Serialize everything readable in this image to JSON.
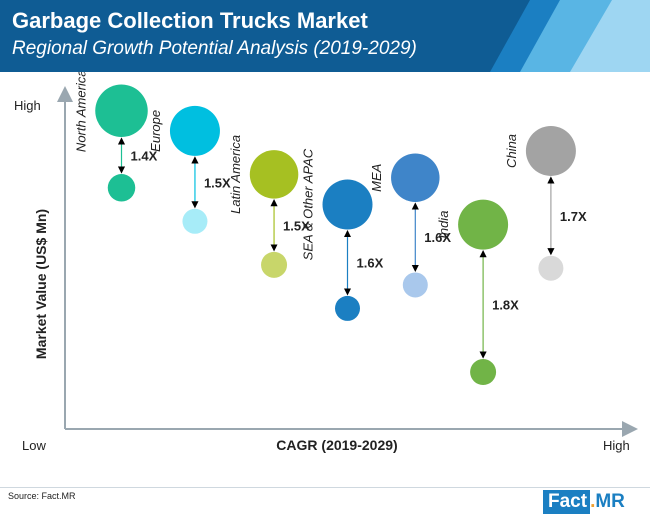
{
  "header": {
    "title": "Garbage Collection Trucks Market",
    "subtitle": "Regional Growth Potential Analysis (2019-2029)",
    "colors": {
      "dark": "#0f5c94",
      "mid": "#1b7fc2",
      "light": "#59b5e4",
      "pale": "#9ed6f2"
    }
  },
  "chart_data": {
    "type": "bubble",
    "xlabel": "CAGR (2019-2029)",
    "ylabel": "Market Value (US$ Mn)",
    "x_low_label": "Low",
    "x_high_label": "High",
    "y_high_label": "High",
    "x_range": [
      0,
      10
    ],
    "y_range": [
      0,
      10
    ],
    "regions": [
      {
        "name": "North America",
        "x": 1.0,
        "y_top": 9.5,
        "y_bottom": 7.2,
        "r_top": 1.05,
        "r_bottom": 0.55,
        "multiplier": "1.4X",
        "color_top": "#1dbf94",
        "color_bottom": "#1dbf94"
      },
      {
        "name": "Europe",
        "x": 2.3,
        "y_top": 8.9,
        "y_bottom": 6.2,
        "r_top": 1.0,
        "r_bottom": 0.5,
        "multiplier": "1.5X",
        "color_top": "#00bfe0",
        "color_bottom": "#a7ecf8"
      },
      {
        "name": "Latin America",
        "x": 3.7,
        "y_top": 7.6,
        "y_bottom": 4.9,
        "r_top": 0.97,
        "r_bottom": 0.52,
        "multiplier": "1.5X",
        "color_top": "#a6c022",
        "color_bottom": "#c8d66a"
      },
      {
        "name": "SEA & Other APAC",
        "x": 5.0,
        "y_top": 6.7,
        "y_bottom": 3.6,
        "r_top": 1.0,
        "r_bottom": 0.5,
        "multiplier": "1.6X",
        "color_top": "#1b7fc2",
        "color_bottom": "#1b7fc2"
      },
      {
        "name": "MEA",
        "x": 6.2,
        "y_top": 7.5,
        "y_bottom": 4.3,
        "r_top": 0.97,
        "r_bottom": 0.5,
        "multiplier": "1.6X",
        "color_top": "#3f85c9",
        "color_bottom": "#a9c8ec"
      },
      {
        "name": "India",
        "x": 7.4,
        "y_top": 6.1,
        "y_bottom": 1.7,
        "r_top": 1.0,
        "r_bottom": 0.52,
        "multiplier": "1.8X",
        "color_top": "#71b447",
        "color_bottom": "#71b447"
      },
      {
        "name": "China",
        "x": 8.6,
        "y_top": 8.3,
        "y_bottom": 4.8,
        "r_top": 1.0,
        "r_bottom": 0.5,
        "multiplier": "1.7X",
        "color_top": "#a3a3a3",
        "color_bottom": "#d9d9d9"
      }
    ]
  },
  "footer": {
    "source": "Source: Fact.MR",
    "logo_left": "Fact",
    "logo_dot": ".",
    "logo_right": "MR"
  }
}
